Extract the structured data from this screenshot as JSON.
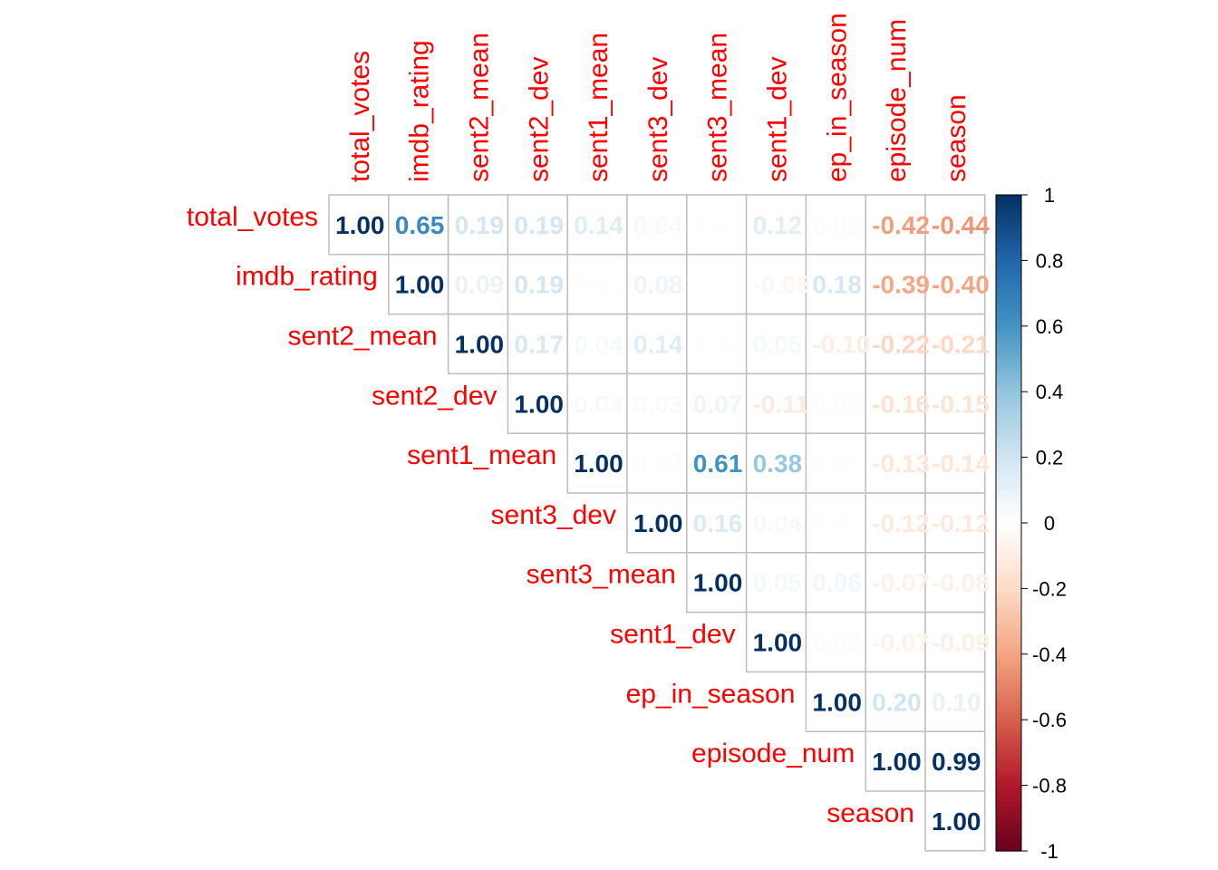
{
  "chart_data": {
    "type": "heatmap",
    "layout": "upper-triangle",
    "variables": [
      "total_votes",
      "imdb_rating",
      "sent2_mean",
      "sent2_dev",
      "sent1_mean",
      "sent3_dev",
      "sent3_mean",
      "sent1_dev",
      "ep_in_season",
      "episode_num",
      "season"
    ],
    "values": [
      [
        1.0,
        0.65,
        0.19,
        0.19,
        0.14,
        0.04,
        0.01,
        0.12,
        0.02,
        -0.42,
        -0.44
      ],
      [
        null,
        1.0,
        0.09,
        0.19,
        0.01,
        0.08,
        0.0,
        -0.05,
        0.18,
        -0.39,
        -0.4
      ],
      [
        null,
        null,
        1.0,
        0.17,
        0.04,
        0.14,
        0.01,
        0.05,
        -0.1,
        -0.22,
        -0.21
      ],
      [
        null,
        null,
        null,
        1.0,
        0.04,
        0.03,
        0.07,
        -0.11,
        0.02,
        -0.16,
        -0.15
      ],
      [
        null,
        null,
        null,
        null,
        1.0,
        0.02,
        0.61,
        0.38,
        0.01,
        -0.13,
        -0.14
      ],
      [
        null,
        null,
        null,
        null,
        null,
        1.0,
        0.16,
        0.04,
        0.01,
        -0.12,
        -0.12
      ],
      [
        null,
        null,
        null,
        null,
        null,
        null,
        1.0,
        0.05,
        0.06,
        -0.07,
        -0.08
      ],
      [
        null,
        null,
        null,
        null,
        null,
        null,
        null,
        1.0,
        0.02,
        -0.07,
        -0.09
      ],
      [
        null,
        null,
        null,
        null,
        null,
        null,
        null,
        null,
        1.0,
        0.2,
        0.1
      ],
      [
        null,
        null,
        null,
        null,
        null,
        null,
        null,
        null,
        null,
        1.0,
        0.99
      ],
      [
        null,
        null,
        null,
        null,
        null,
        null,
        null,
        null,
        null,
        null,
        1.0
      ]
    ],
    "value_format": "2 decimals",
    "colorbar": {
      "range": [
        -1,
        1
      ],
      "ticks": [
        "1",
        "0.8",
        "0.6",
        "0.4",
        "0.2",
        "0",
        "-0.2",
        "-0.4",
        "-0.6",
        "-0.8",
        "-1"
      ],
      "colors": [
        "#67001F",
        "#B2182B",
        "#D6604D",
        "#F4A582",
        "#FDDBC7",
        "#FFFFFF",
        "#D1E5F0",
        "#92C5DE",
        "#4393C3",
        "#2166AC",
        "#053061"
      ]
    },
    "label_color": "#FF0000",
    "grid_color": "#BEBEBE"
  }
}
